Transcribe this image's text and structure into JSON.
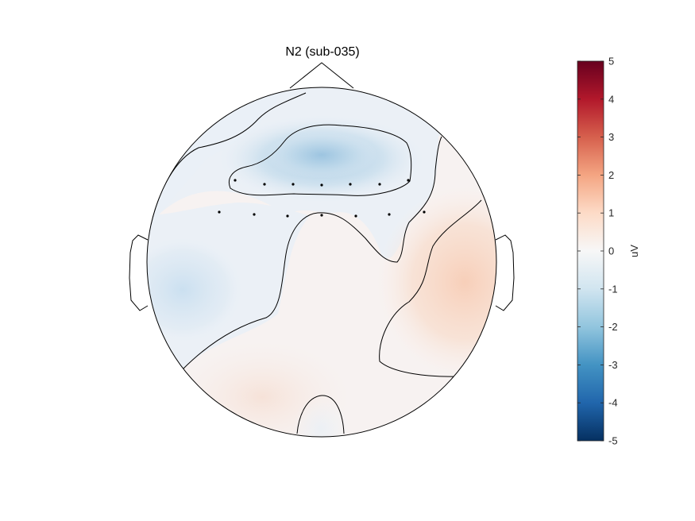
{
  "title": "N2 (sub-035)",
  "colorbar": {
    "unit": "uV",
    "min": -5,
    "max": 5,
    "ticks": [
      "5",
      "4",
      "3",
      "2",
      "1",
      "0",
      "-1",
      "-2",
      "-3",
      "-4",
      "-5"
    ],
    "colormap": [
      "#053061",
      "#2166ac",
      "#4393c3",
      "#92c5de",
      "#d1e5f0",
      "#f7f7f7",
      "#fddbc7",
      "#f4a582",
      "#d6604d",
      "#b2182b",
      "#67001f"
    ]
  },
  "topomap": {
    "background_color": "#f7f2f1",
    "regions": [
      {
        "name": "frontal-negative",
        "sign": "negative",
        "peak_uV": -1.8
      },
      {
        "name": "left-temporal-negative",
        "sign": "negative",
        "peak_uV": -1.3
      },
      {
        "name": "right-temporal-positive",
        "sign": "positive",
        "peak_uV": 0.9
      }
    ],
    "electrode_rows": 2,
    "electrode_count": 14
  }
}
